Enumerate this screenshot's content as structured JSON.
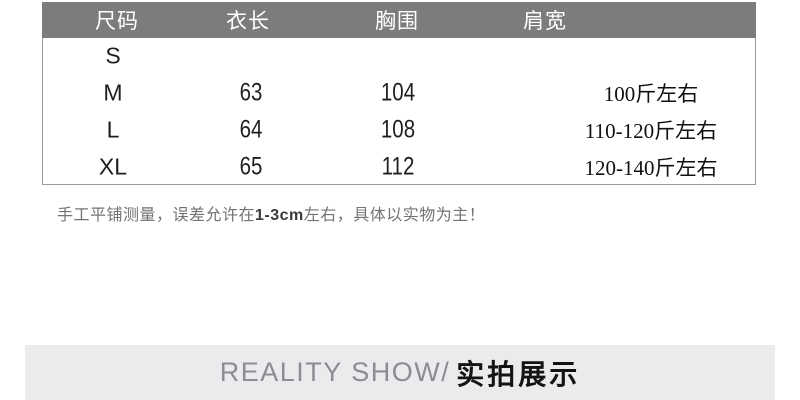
{
  "size_chart": {
    "headers": [
      "尺码",
      "衣长",
      "胸围",
      "肩宽"
    ],
    "rows": [
      {
        "size": "S",
        "length": "",
        "bust": "",
        "shoulder": ""
      },
      {
        "size": "M",
        "length": "63",
        "bust": "104",
        "shoulder": "100斤左右"
      },
      {
        "size": "L",
        "length": "64",
        "bust": "108",
        "shoulder": "110-120斤左右"
      },
      {
        "size": "XL",
        "length": "65",
        "bust": "112",
        "shoulder": "120-140斤左右"
      }
    ]
  },
  "note": {
    "pre": "手工平铺测量，误差允许在",
    "emphasis": "1-3cm",
    "post": "左右，具体以实物为主！"
  },
  "section_banner": {
    "latin": "REALITY SHOW/",
    "chinese": "实拍展示"
  },
  "colors": {
    "header_bg": "#7c7c7c",
    "header_text": "#ffffff",
    "table_border": "#9b9b9b",
    "body_text": "#1f1f1f",
    "note_text": "#737373",
    "note_emphasis": "#3a3a3a",
    "banner_bg": "#ebebed",
    "banner_latin": "#8c8c92",
    "banner_cn": "#141414",
    "page_bg": "#ffffff"
  }
}
